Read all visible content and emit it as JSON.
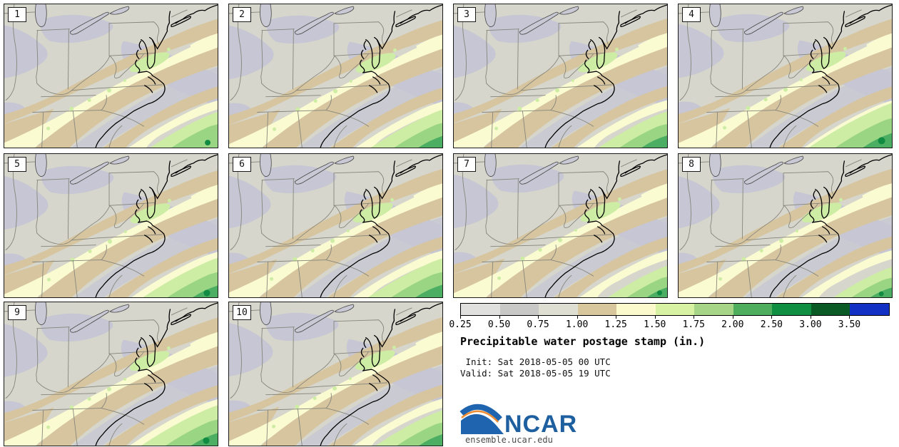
{
  "figure": {
    "title": "Precipitable water postage stamp (in.)",
    "init_line": " Init: Sat 2018-05-05 00 UTC",
    "valid_line": "Valid: Sat 2018-05-05 19 UTC"
  },
  "panels": [
    {
      "num": "1"
    },
    {
      "num": "2"
    },
    {
      "num": "3"
    },
    {
      "num": "4"
    },
    {
      "num": "5"
    },
    {
      "num": "6"
    },
    {
      "num": "7"
    },
    {
      "num": "8"
    },
    {
      "num": "9"
    },
    {
      "num": "10"
    }
  ],
  "colorbar": {
    "unit": "in.",
    "ticks": [
      "0.25",
      "0.50",
      "0.75",
      "1.00",
      "1.25",
      "1.50",
      "1.75",
      "2.00",
      "2.50",
      "3.00",
      "3.50"
    ],
    "colors": [
      "#e0e0de",
      "#c8c8c6",
      "#deded2",
      "#d8c79d",
      "#fafacd",
      "#d7f2a2",
      "#a6d587",
      "#4fae5e",
      "#108f43",
      "#0a5a26",
      "#1330c4"
    ]
  },
  "map_colors": {
    "base": "#d6d6cc",
    "lavender": "#c6c6d4",
    "tan": "#d7c5a0",
    "pale_yellow": "#fbfbd2",
    "light_green": "#cdeca4",
    "mid_green": "#9ad584",
    "green": "#4bae63",
    "dark_green": "#118b42",
    "lake": "#c9c9d6",
    "coastline": "#000000",
    "state_border": "#85857b"
  },
  "branding": {
    "logo_text": "NCAR",
    "site": "ensemble.ucar.edu",
    "logo_blue": "#1e64ae",
    "logo_orange": "#ee8f35"
  }
}
